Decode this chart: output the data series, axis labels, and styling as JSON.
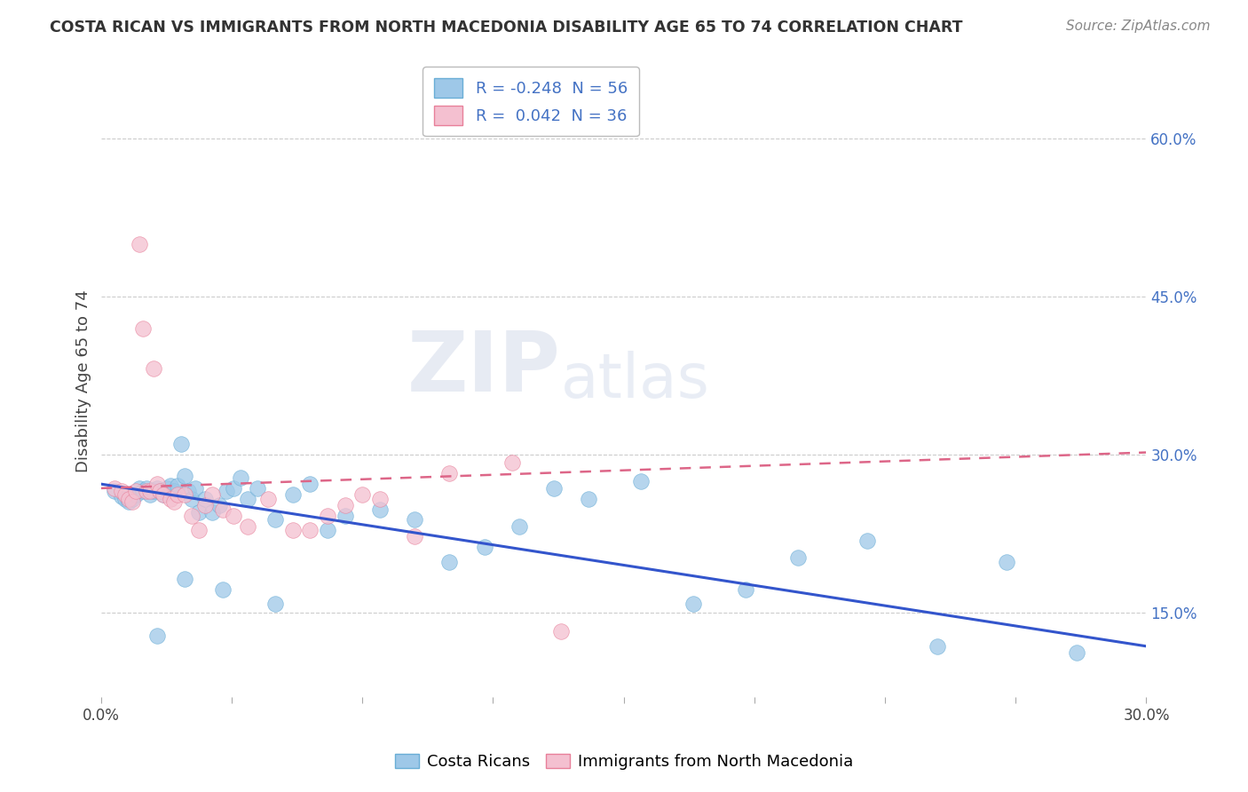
{
  "title": "COSTA RICAN VS IMMIGRANTS FROM NORTH MACEDONIA DISABILITY AGE 65 TO 74 CORRELATION CHART",
  "source": "Source: ZipAtlas.com",
  "yticks": [
    "15.0%",
    "30.0%",
    "45.0%",
    "60.0%"
  ],
  "ytick_values": [
    0.15,
    0.3,
    0.45,
    0.6
  ],
  "xlim": [
    0.0,
    0.3
  ],
  "ylim": [
    0.07,
    0.67
  ],
  "legend_entries": [
    {
      "label_r": "R = -0.248",
      "label_n": "N = 56",
      "color": "#adc8e8"
    },
    {
      "label_r": "R =  0.042",
      "label_n": "N = 36",
      "color": "#f4b8c8"
    }
  ],
  "watermark_zip": "ZIP",
  "watermark_atlas": "atlas",
  "scatter_blue": {
    "x": [
      0.004,
      0.006,
      0.007,
      0.008,
      0.009,
      0.01,
      0.011,
      0.012,
      0.013,
      0.014,
      0.015,
      0.016,
      0.017,
      0.018,
      0.019,
      0.02,
      0.021,
      0.022,
      0.023,
      0.024,
      0.025,
      0.026,
      0.027,
      0.028,
      0.03,
      0.032,
      0.034,
      0.036,
      0.038,
      0.04,
      0.042,
      0.045,
      0.05,
      0.055,
      0.06,
      0.065,
      0.07,
      0.08,
      0.09,
      0.1,
      0.11,
      0.12,
      0.13,
      0.14,
      0.155,
      0.17,
      0.185,
      0.2,
      0.22,
      0.24,
      0.016,
      0.024,
      0.035,
      0.05,
      0.26,
      0.28
    ],
    "y": [
      0.265,
      0.26,
      0.258,
      0.255,
      0.258,
      0.262,
      0.268,
      0.265,
      0.268,
      0.262,
      0.265,
      0.268,
      0.265,
      0.262,
      0.268,
      0.27,
      0.265,
      0.27,
      0.31,
      0.28,
      0.265,
      0.258,
      0.268,
      0.245,
      0.258,
      0.245,
      0.252,
      0.265,
      0.268,
      0.278,
      0.258,
      0.268,
      0.238,
      0.262,
      0.272,
      0.228,
      0.242,
      0.248,
      0.238,
      0.198,
      0.212,
      0.232,
      0.268,
      0.258,
      0.275,
      0.158,
      0.172,
      0.202,
      0.218,
      0.118,
      0.128,
      0.182,
      0.172,
      0.158,
      0.198,
      0.112
    ]
  },
  "scatter_pink": {
    "x": [
      0.004,
      0.006,
      0.007,
      0.008,
      0.009,
      0.01,
      0.011,
      0.012,
      0.013,
      0.014,
      0.015,
      0.016,
      0.017,
      0.018,
      0.02,
      0.021,
      0.022,
      0.024,
      0.026,
      0.028,
      0.03,
      0.032,
      0.035,
      0.038,
      0.042,
      0.048,
      0.055,
      0.06,
      0.065,
      0.07,
      0.075,
      0.08,
      0.09,
      0.1,
      0.118,
      0.132
    ],
    "y": [
      0.268,
      0.265,
      0.262,
      0.258,
      0.255,
      0.265,
      0.5,
      0.42,
      0.265,
      0.265,
      0.382,
      0.272,
      0.265,
      0.262,
      0.258,
      0.255,
      0.262,
      0.262,
      0.242,
      0.228,
      0.252,
      0.262,
      0.248,
      0.242,
      0.232,
      0.258,
      0.228,
      0.228,
      0.242,
      0.252,
      0.262,
      0.258,
      0.222,
      0.282,
      0.292,
      0.132
    ]
  },
  "trendline_blue_x0": 0.0,
  "trendline_blue_x1": 0.3,
  "trendline_blue_y0": 0.272,
  "trendline_blue_y1": 0.118,
  "trendline_pink_x0": 0.0,
  "trendline_pink_x1": 0.3,
  "trendline_pink_y0": 0.268,
  "trendline_pink_y1": 0.302,
  "scatter_blue_color": "#9ec8e8",
  "scatter_blue_edge": "#6aaed6",
  "scatter_pink_color": "#f4c0d0",
  "scatter_pink_edge": "#e8809a",
  "trendline_blue_color": "#3355cc",
  "trendline_pink_color": "#dd6688",
  "background_color": "#ffffff",
  "grid_color": "#cccccc",
  "bottom_legend_blue": "Costa Ricans",
  "bottom_legend_pink": "Immigrants from North Macedonia"
}
